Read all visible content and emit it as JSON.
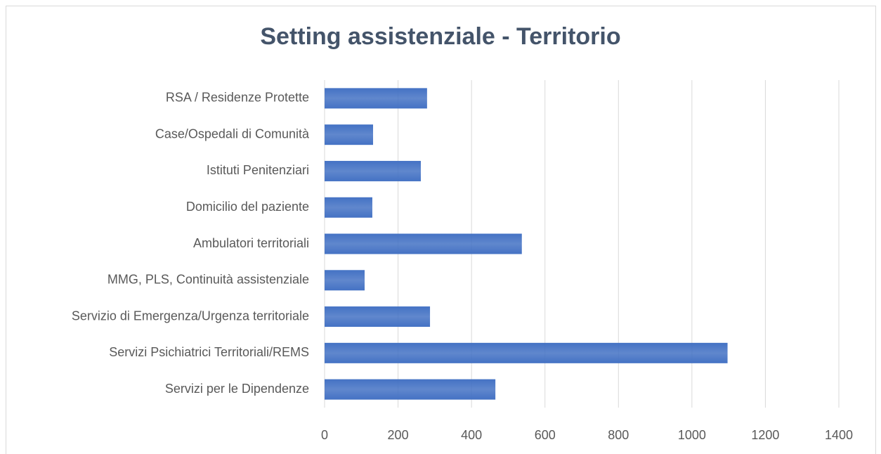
{
  "chart_data": {
    "type": "bar",
    "orientation": "horizontal",
    "title": "Setting assistenziale - Territorio",
    "categories": [
      "RSA / Residenze Protette",
      "Case/Ospedali di Comunità",
      "Istituti Penitenziari",
      "Domicilio del paziente",
      "Ambulatori territoriali",
      "MMG, PLS, Continuità assistenziale",
      "Servizio di Emergenza/Urgenza territoriale",
      "Servizi Psichiatrici Territoriali/REMS",
      "Servizi per le Dipendenze"
    ],
    "values": [
      279,
      132,
      262,
      130,
      537,
      109,
      287,
      1097,
      465
    ],
    "color": "#4472c4",
    "xlim": [
      0,
      1400
    ],
    "xticks": [
      0,
      200,
      400,
      600,
      800,
      1000,
      1200,
      1400
    ],
    "grid": true
  }
}
